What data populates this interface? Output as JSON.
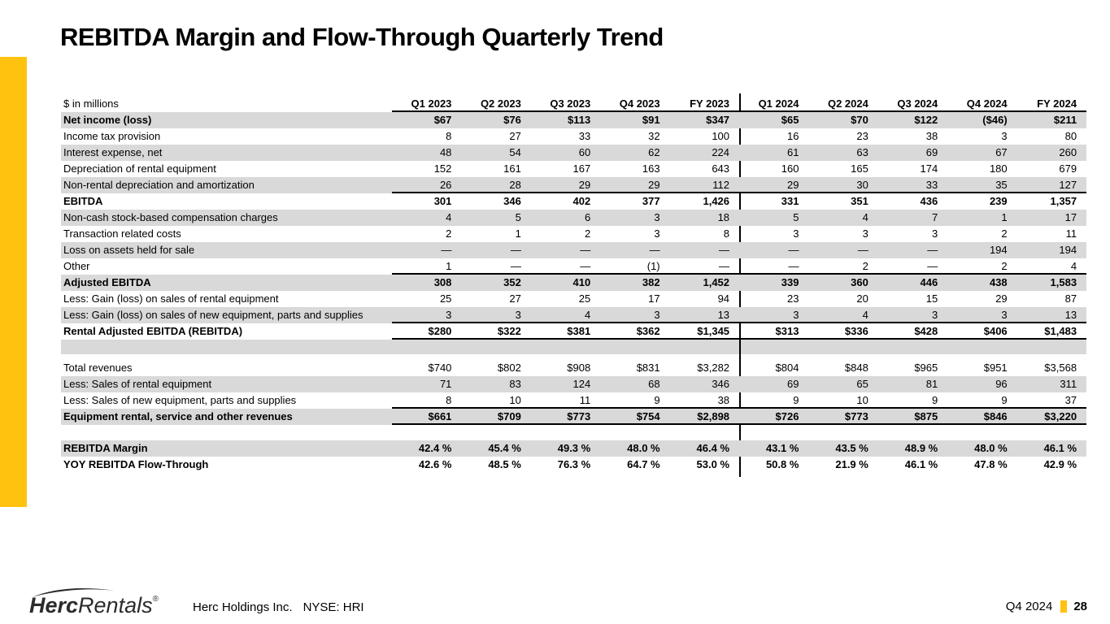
{
  "title": "REBITDA Margin and Flow-Through Quarterly Trend",
  "colors": {
    "accent": "#FFC20E",
    "row_stripe": "#D9D9D9",
    "text": "#000000"
  },
  "table": {
    "unit_label": "$ in millions",
    "columns": [
      "Q1 2023",
      "Q2 2023",
      "Q3 2023",
      "Q4 2023",
      "FY 2023",
      "Q1 2024",
      "Q2 2024",
      "Q3 2024",
      "Q4 2024",
      "FY 2024"
    ],
    "rows": [
      {
        "label": "Net income (loss)",
        "values": [
          "$67",
          "$76",
          "$113",
          "$91",
          "$347",
          "$65",
          "$70",
          "$122",
          "($46)",
          "$211"
        ],
        "bold": true,
        "shade": true
      },
      {
        "label": "Income tax provision",
        "values": [
          "8",
          "27",
          "33",
          "32",
          "100",
          "16",
          "23",
          "38",
          "3",
          "80"
        ]
      },
      {
        "label": "Interest expense, net",
        "values": [
          "48",
          "54",
          "60",
          "62",
          "224",
          "61",
          "63",
          "69",
          "67",
          "260"
        ],
        "shade": true
      },
      {
        "label": "Depreciation of rental equipment",
        "values": [
          "152",
          "161",
          "167",
          "163",
          "643",
          "160",
          "165",
          "174",
          "180",
          "679"
        ]
      },
      {
        "label": "Non-rental depreciation and amortization",
        "values": [
          "26",
          "28",
          "29",
          "29",
          "112",
          "29",
          "30",
          "33",
          "35",
          "127"
        ],
        "shade": true,
        "rule": true
      },
      {
        "label": "EBITDA",
        "values": [
          "301",
          "346",
          "402",
          "377",
          "1,426",
          "331",
          "351",
          "436",
          "239",
          "1,357"
        ],
        "bold": true
      },
      {
        "label": "Non-cash stock-based compensation charges",
        "values": [
          "4",
          "5",
          "6",
          "3",
          "18",
          "5",
          "4",
          "7",
          "1",
          "17"
        ],
        "shade": true
      },
      {
        "label": "Transaction related costs",
        "values": [
          "2",
          "1",
          "2",
          "3",
          "8",
          "3",
          "3",
          "3",
          "2",
          "11"
        ]
      },
      {
        "label": "Loss on assets held for sale",
        "values": [
          "—",
          "—",
          "—",
          "—",
          "—",
          "—",
          "—",
          "—",
          "194",
          "194"
        ],
        "shade": true
      },
      {
        "label": "Other",
        "values": [
          "1",
          "—",
          "—",
          "(1)",
          "—",
          "—",
          "2",
          "—",
          "2",
          "4"
        ],
        "rule": true
      },
      {
        "label": "Adjusted EBITDA",
        "values": [
          "308",
          "352",
          "410",
          "382",
          "1,452",
          "339",
          "360",
          "446",
          "438",
          "1,583"
        ],
        "bold": true,
        "shade": true
      },
      {
        "label": "Less: Gain (loss) on sales of rental equipment",
        "values": [
          "25",
          "27",
          "25",
          "17",
          "94",
          "23",
          "20",
          "15",
          "29",
          "87"
        ]
      },
      {
        "label": "Less: Gain (loss) on sales of new equipment, parts and supplies",
        "values": [
          "3",
          "3",
          "4",
          "3",
          "13",
          "3",
          "4",
          "3",
          "3",
          "13"
        ],
        "shade": true,
        "rule": true
      },
      {
        "label": "Rental Adjusted EBITDA (REBITDA)",
        "values": [
          "$280",
          "$322",
          "$381",
          "$362",
          "$1,345",
          "$313",
          "$336",
          "$428",
          "$406",
          "$1,483"
        ],
        "bold": true,
        "rule": true
      },
      {
        "spacer": true,
        "gap": "shaded"
      },
      {
        "spacer": true,
        "gap": "small"
      },
      {
        "label": "Total revenues",
        "values": [
          "$740",
          "$802",
          "$908",
          "$831",
          "$3,282",
          "$804",
          "$848",
          "$965",
          "$951",
          "$3,568"
        ]
      },
      {
        "label": "Less: Sales of rental equipment",
        "values": [
          "71",
          "83",
          "124",
          "68",
          "346",
          "69",
          "65",
          "81",
          "96",
          "311"
        ],
        "shade": true
      },
      {
        "label": "Less: Sales of new equipment, parts and supplies",
        "values": [
          "8",
          "10",
          "11",
          "9",
          "38",
          "9",
          "10",
          "9",
          "9",
          "37"
        ],
        "rule": true
      },
      {
        "label": "Equipment rental, service and other revenues",
        "values": [
          "$661",
          "$709",
          "$773",
          "$754",
          "$2,898",
          "$726",
          "$773",
          "$875",
          "$846",
          "$3,220"
        ],
        "bold": true,
        "shade": true,
        "rule": true
      },
      {
        "spacer": true,
        "gap": "large"
      },
      {
        "label": "REBITDA Margin",
        "values": [
          "42.4 %",
          "45.4 %",
          "49.3 %",
          "48.0 %",
          "46.4 %",
          "43.1 %",
          "43.5 %",
          "48.9 %",
          "48.0 %",
          "46.1 %"
        ],
        "bold": true,
        "shade": true
      },
      {
        "label": "YOY REBITDA Flow-Through",
        "values": [
          "42.6 %",
          "48.5 %",
          "76.3 %",
          "64.7 %",
          "53.0 %",
          "50.8 %",
          "21.9 %",
          "46.1 %",
          "47.8 %",
          "42.9 %"
        ],
        "bold": true
      }
    ]
  },
  "footer": {
    "logo": {
      "bold_part": "Herc",
      "light_part": "Rentals",
      "reg_mark": "®"
    },
    "company": "Herc Holdings Inc.",
    "ticker": "NYSE: HRI",
    "period": "Q4 2024",
    "page_number": "28"
  }
}
